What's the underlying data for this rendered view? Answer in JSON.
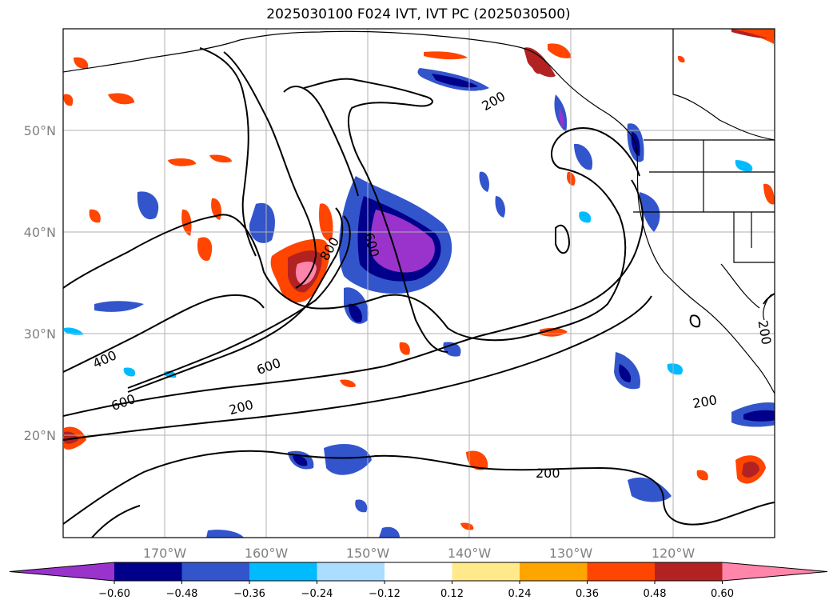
{
  "title": "2025030100 F024 IVT, IVT PC (2025030500)",
  "map": {
    "lat_labels": [
      "50°N",
      "40°N",
      "30°N",
      "20°N"
    ],
    "lon_labels": [
      "170°W",
      "160°W",
      "150°W",
      "140°W",
      "130°W",
      "120°W"
    ],
    "contour_labels": [
      "200",
      "600",
      "800",
      "400",
      "600",
      "600",
      "200",
      "200",
      "200",
      "200"
    ]
  },
  "colorbar": {
    "ticks": [
      "−0.60",
      "−0.48",
      "−0.36",
      "−0.24",
      "−0.12",
      "0.12",
      "0.24",
      "0.36",
      "0.48",
      "0.60"
    ],
    "colors": [
      "#9933cc",
      "#00008b",
      "#3355cc",
      "#00bbff",
      "#aaddff",
      "#ffffff",
      "#ffe98a",
      "#ffa500",
      "#ff4500",
      "#b22222",
      "#ff85aa"
    ]
  }
}
